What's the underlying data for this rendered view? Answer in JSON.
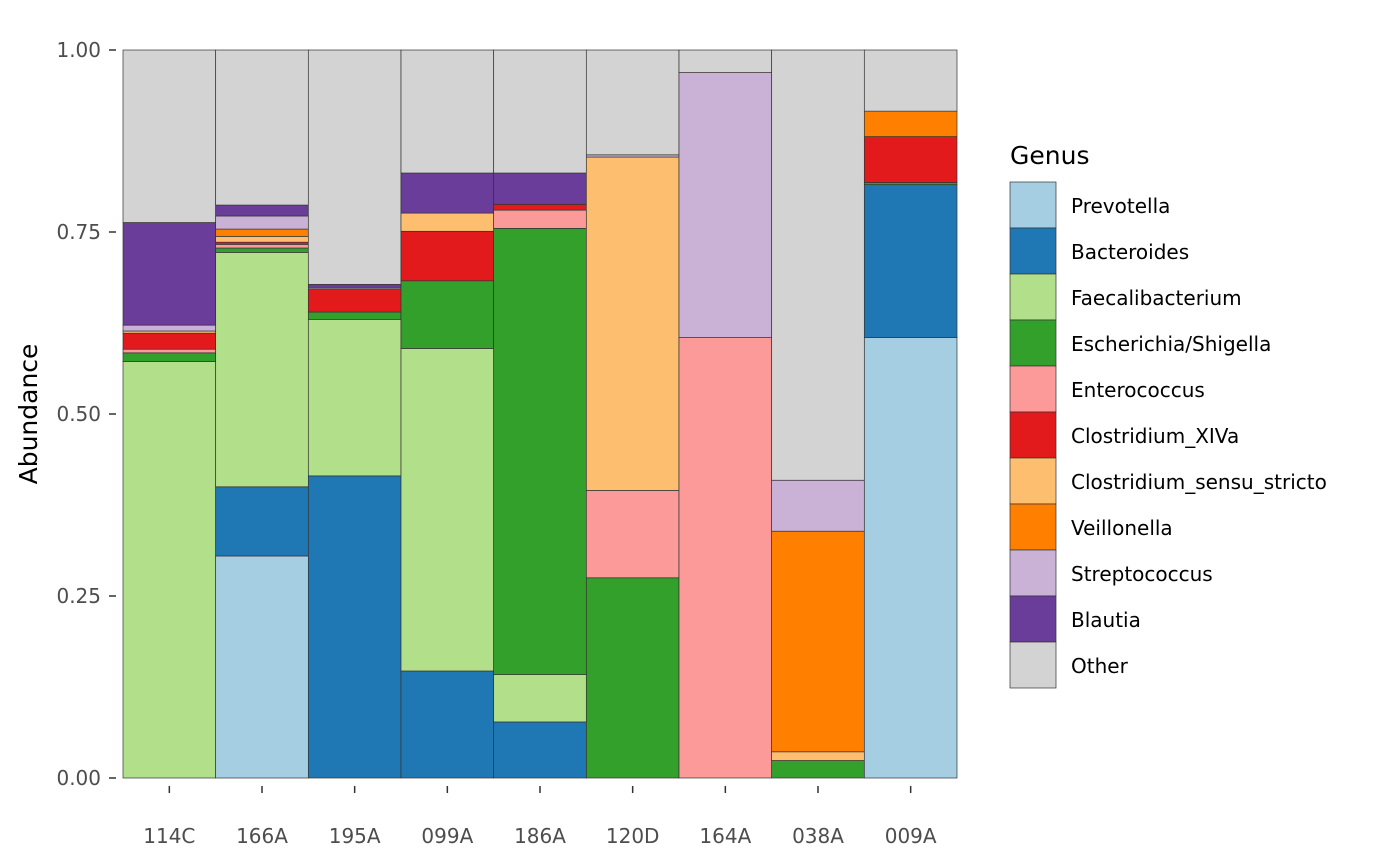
{
  "chart_data": {
    "type": "bar",
    "stacked": true,
    "ylabel": "Abundance",
    "xlabel": "",
    "ylim": [
      0,
      1
    ],
    "yticks": [
      "0.00",
      "0.25",
      "0.50",
      "0.75",
      "1.00"
    ],
    "ytick_values": [
      0,
      0.25,
      0.5,
      0.75,
      1
    ],
    "grid": false,
    "legend_position": "right",
    "legend_title": "Genus",
    "categories": [
      "114C",
      "166A",
      "195A",
      "099A",
      "186A",
      "120D",
      "164A",
      "038A",
      "009A"
    ],
    "series": [
      {
        "name": "Prevotella",
        "color": "#a6cee3",
        "values": [
          0,
          0.305,
          0,
          0,
          0,
          0,
          0,
          0,
          0.605
        ]
      },
      {
        "name": "Bacteroides",
        "color": "#1f78b4",
        "values": [
          0,
          0.095,
          0.415,
          0.147,
          0.077,
          0,
          0,
          0,
          0.21
        ]
      },
      {
        "name": "Faecalibacterium",
        "color": "#b2df8a",
        "values": [
          0.572,
          0.322,
          0.215,
          0.443,
          0.065,
          0,
          0,
          0,
          0
        ]
      },
      {
        "name": "Escherichia/Shigella",
        "color": "#33a02c",
        "values": [
          0.012,
          0.006,
          0.01,
          0.093,
          0.613,
          0.275,
          0,
          0.024,
          0.003
        ]
      },
      {
        "name": "Enterococcus",
        "color": "#fb9a99",
        "values": [
          0.005,
          0.005,
          0,
          0,
          0.025,
          0.12,
          0.605,
          0,
          0
        ]
      },
      {
        "name": "Clostridium_XIVa",
        "color": "#e31a1c",
        "values": [
          0.022,
          0.003,
          0.032,
          0.068,
          0.008,
          0,
          0,
          0,
          0.063
        ]
      },
      {
        "name": "Clostridium_sensu_stricto",
        "color": "#fdbf6f",
        "values": [
          0.003,
          0.008,
          0,
          0.025,
          0,
          0.458,
          0,
          0.012,
          0
        ]
      },
      {
        "name": "Veillonella",
        "color": "#ff7f00",
        "values": [
          0,
          0.01,
          0,
          0,
          0,
          0,
          0,
          0.303,
          0.035
        ]
      },
      {
        "name": "Streptococcus",
        "color": "#cab2d6",
        "values": [
          0.008,
          0.018,
          0.002,
          0,
          0,
          0.003,
          0.364,
          0.07,
          0
        ]
      },
      {
        "name": "Blautia",
        "color": "#6a3d9a",
        "values": [
          0.141,
          0.015,
          0.004,
          0.055,
          0.043,
          0,
          0,
          0,
          0
        ]
      },
      {
        "name": "Other",
        "color": "#d3d3d3",
        "values": [
          0.237,
          0.213,
          0.322,
          0.169,
          0.169,
          0.144,
          0.031,
          0.591,
          0.084
        ]
      }
    ]
  }
}
